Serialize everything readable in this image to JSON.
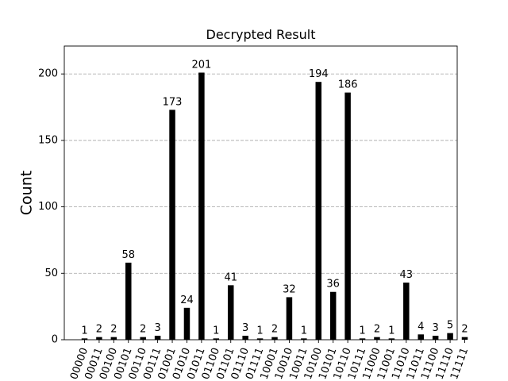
{
  "chart_data": {
    "type": "bar",
    "title": "Decrypted Result",
    "xlabel": "",
    "ylabel": "Count",
    "ylim": [
      0,
      221
    ],
    "yticks": [
      0,
      50,
      100,
      150,
      200
    ],
    "grid": "y-dashed",
    "bar_color": "#000000",
    "grid_color": "#b0b0b0",
    "categories": [
      "00000",
      "00011",
      "00100",
      "00101",
      "00110",
      "00111",
      "01001",
      "01010",
      "01011",
      "01100",
      "01101",
      "01110",
      "01111",
      "10001",
      "10010",
      "10011",
      "10100",
      "10101",
      "10110",
      "10111",
      "11000",
      "11001",
      "11010",
      "11011",
      "11100",
      "11110",
      "11111"
    ],
    "values": [
      1,
      2,
      2,
      58,
      2,
      3,
      173,
      24,
      201,
      1,
      41,
      3,
      1,
      2,
      32,
      1,
      194,
      36,
      186,
      1,
      2,
      1,
      43,
      4,
      3,
      5,
      2
    ]
  }
}
